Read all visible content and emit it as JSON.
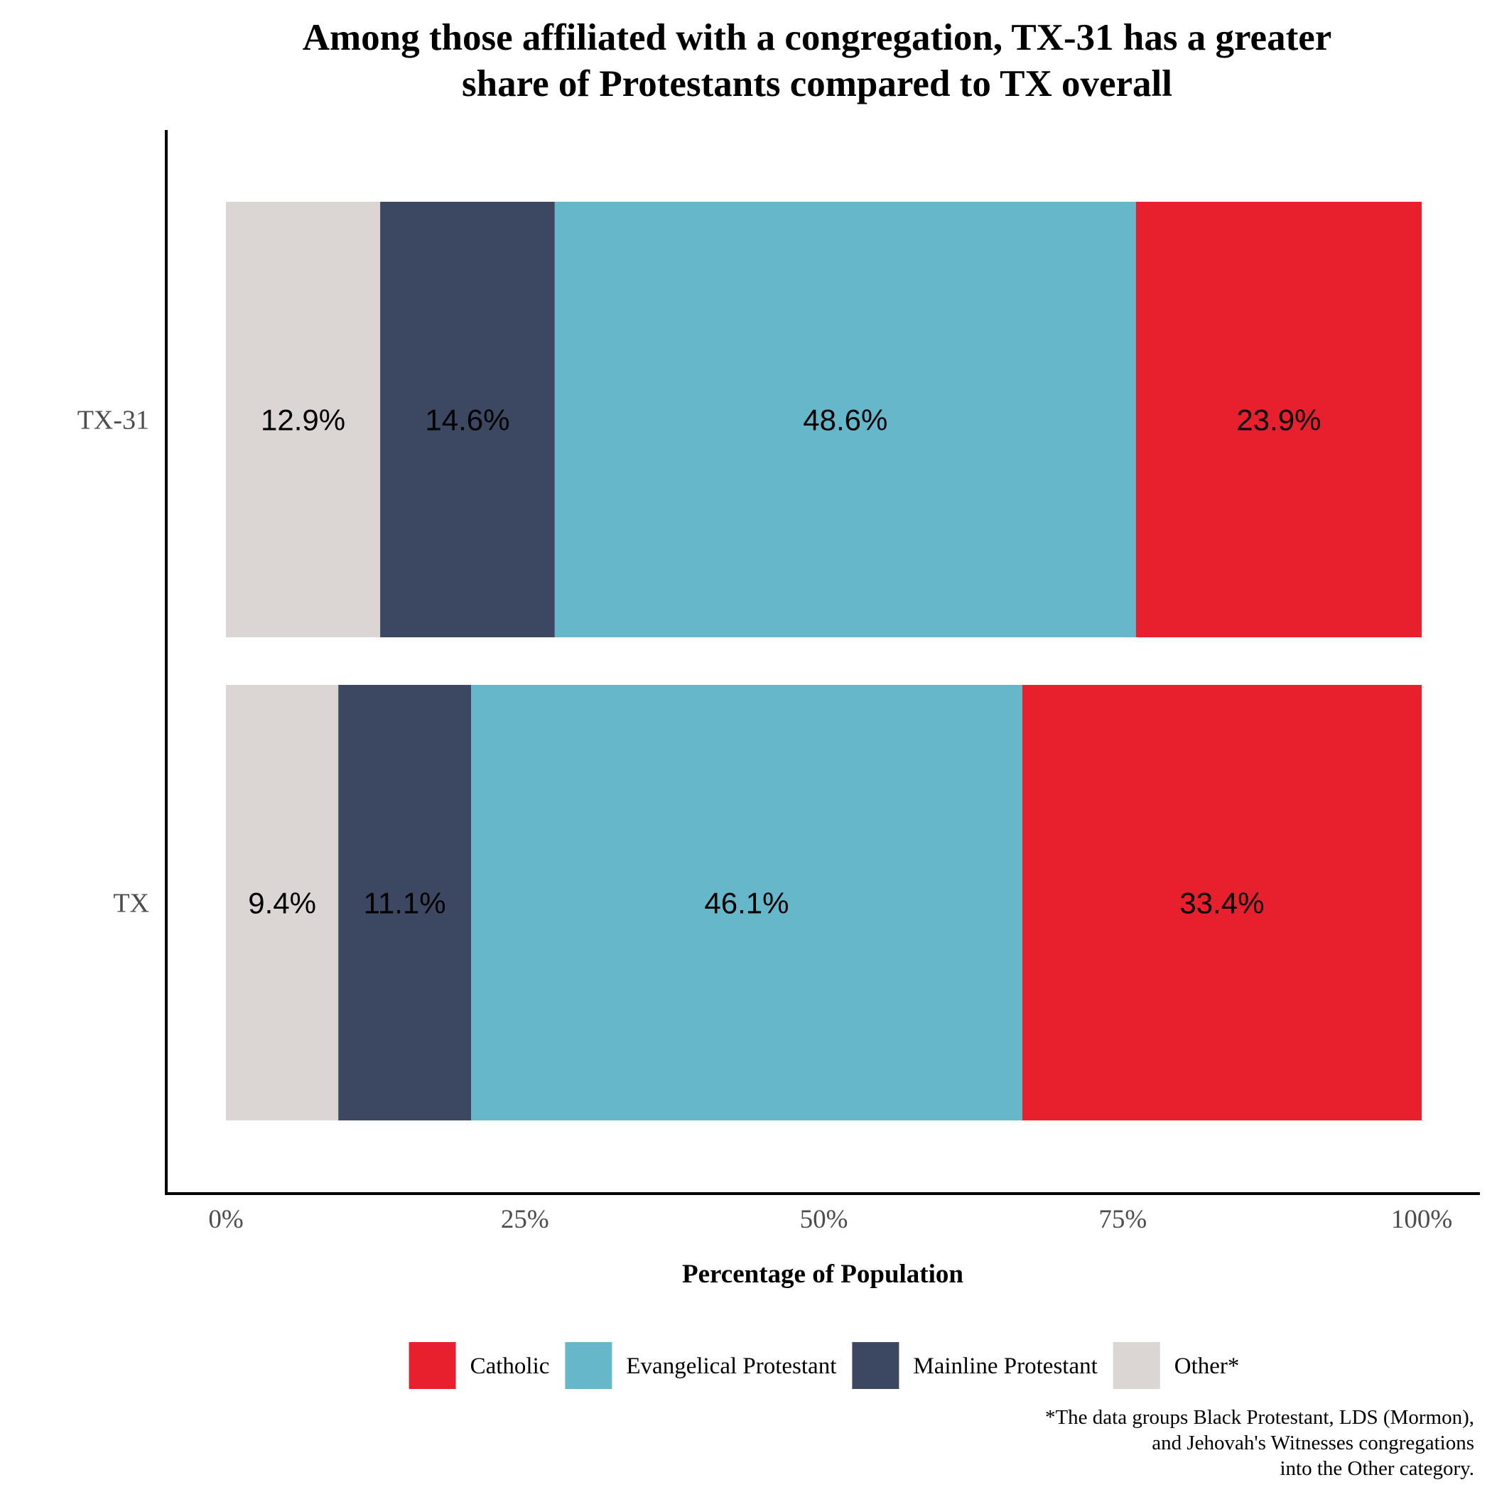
{
  "chart_data": {
    "type": "bar",
    "orientation": "horizontal",
    "stacked": true,
    "title_lines": [
      "Among those affiliated with a congregation, TX-31 has a greater",
      "share of Protestants compared to TX overall"
    ],
    "xlabel": "Percentage of Population",
    "ylabel": "",
    "xlim": [
      0,
      100
    ],
    "x_ticks": [
      0,
      25,
      50,
      75,
      100
    ],
    "x_tick_labels": [
      "0%",
      "25%",
      "50%",
      "75%",
      "100%"
    ],
    "categories": [
      "TX-31",
      "TX"
    ],
    "series": [
      {
        "name": "Other*",
        "color": "#dbd6d4",
        "values": [
          12.9,
          9.4
        ],
        "labels": [
          "12.9%",
          "9.4%"
        ]
      },
      {
        "name": "Mainline Protestant",
        "color": "#3c4862",
        "values": [
          14.6,
          11.1
        ],
        "labels": [
          "14.6%",
          "11.1%"
        ]
      },
      {
        "name": "Evangelical Protestant",
        "color": "#67b7ca",
        "values": [
          48.6,
          46.1
        ],
        "labels": [
          "48.6%",
          "46.1%"
        ]
      },
      {
        "name": "Catholic",
        "color": "#e8202d",
        "values": [
          23.9,
          33.4
        ],
        "labels": [
          "23.9%",
          "33.4%"
        ]
      }
    ],
    "legend_order": [
      "Catholic",
      "Evangelical Protestant",
      "Mainline Protestant",
      "Other*"
    ],
    "legend_position": "bottom",
    "grid": false,
    "footnote_lines": [
      "*The data groups Black Protestant, LDS (Mormon),",
      "and Jehovah's Witnesses congregations",
      "into the Other category."
    ]
  }
}
